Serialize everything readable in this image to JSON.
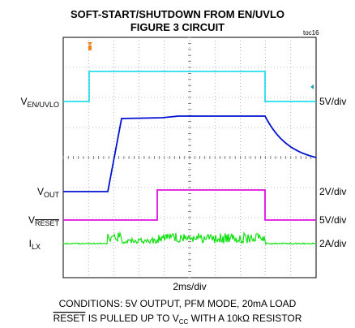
{
  "header": {
    "title_line1": "SOFT-START/SHUTDOWN FROM EN/UVLO",
    "title_line2": "FIGURE 3 CIRCUIT",
    "tag": "toc16"
  },
  "traces": [
    {
      "main": "V",
      "sub": "EN/UVLO",
      "scale": "5V/div"
    },
    {
      "main": "V",
      "sub": "OUT",
      "scale": "2V/div"
    },
    {
      "main": "V",
      "sub": "RESET",
      "scale": "5V/div"
    },
    {
      "main": "I",
      "sub": "LX",
      "scale": "2A/div"
    }
  ],
  "time_scale": "2ms/div",
  "conditions": {
    "line1": "CONDITIONS: 5V OUTPUT, PFM MODE, 20mA LOAD",
    "line2": {
      "overline": "RESET",
      "mid": " IS PULLED UP TO V",
      "sub": "CC",
      "end": " WITH A 10kΩ RESISTOR"
    }
  }
}
